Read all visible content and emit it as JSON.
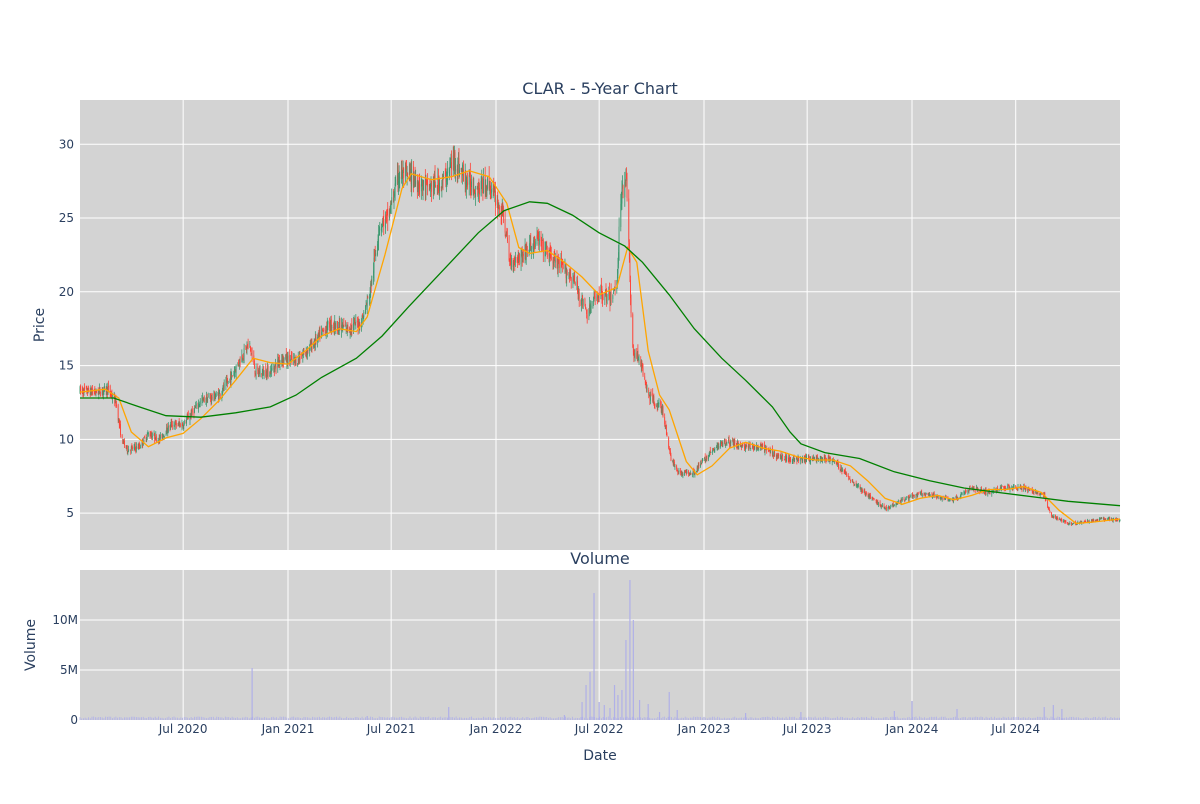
{
  "chart_data": [
    {
      "type": "candlestick",
      "title": "CLAR - 5-Year Chart",
      "ylabel": "Price",
      "ylim": [
        2.5,
        33
      ],
      "yticks": [
        5,
        10,
        15,
        20,
        25,
        30
      ],
      "x_range": [
        "2020-01-02",
        "2024-12-31"
      ],
      "grid": true,
      "colors": {
        "increasing": "#3d9970",
        "decreasing": "#ff4136",
        "ma_short": "#ffa500",
        "ma_long": "#008000",
        "plot_bg": "#d3d3d3"
      },
      "price_path": [
        [
          "2020-01-02",
          13.3
        ],
        [
          "2020-02-01",
          13.2
        ],
        [
          "2020-02-20",
          13.4
        ],
        [
          "2020-03-05",
          12.5
        ],
        [
          "2020-03-15",
          10.0
        ],
        [
          "2020-03-25",
          9.3
        ],
        [
          "2020-04-15",
          9.5
        ],
        [
          "2020-05-01",
          10.4
        ],
        [
          "2020-05-20",
          10.0
        ],
        [
          "2020-06-10",
          11.0
        ],
        [
          "2020-07-01",
          11.0
        ],
        [
          "2020-08-01",
          12.6
        ],
        [
          "2020-09-01",
          13.0
        ],
        [
          "2020-09-20",
          14.0
        ],
        [
          "2020-10-10",
          15.5
        ],
        [
          "2020-10-25",
          16.5
        ],
        [
          "2020-11-05",
          14.5
        ],
        [
          "2020-12-01",
          14.6
        ],
        [
          "2020-12-20",
          15.5
        ],
        [
          "2021-01-15",
          15.3
        ],
        [
          "2021-02-15",
          16.5
        ],
        [
          "2021-03-15",
          17.8
        ],
        [
          "2021-04-15",
          17.5
        ],
        [
          "2021-05-10",
          18.0
        ],
        [
          "2021-05-25",
          20.0
        ],
        [
          "2021-06-10",
          24.5
        ],
        [
          "2021-06-25",
          25.0
        ],
        [
          "2021-07-15",
          28.0
        ],
        [
          "2021-08-05",
          27.8
        ],
        [
          "2021-09-01",
          27.0
        ],
        [
          "2021-10-01",
          27.5
        ],
        [
          "2021-10-20",
          29.0
        ],
        [
          "2021-11-10",
          27.5
        ],
        [
          "2021-12-01",
          27.0
        ],
        [
          "2021-12-20",
          27.3
        ],
        [
          "2022-01-15",
          25.0
        ],
        [
          "2022-01-25",
          22.0
        ],
        [
          "2022-02-15",
          22.5
        ],
        [
          "2022-03-15",
          23.5
        ],
        [
          "2022-04-15",
          22.0
        ],
        [
          "2022-05-15",
          21.0
        ],
        [
          "2022-06-10",
          18.5
        ],
        [
          "2022-07-01",
          20.0
        ],
        [
          "2022-07-20",
          19.5
        ],
        [
          "2022-08-01",
          20.5
        ],
        [
          "2022-08-08",
          26.5
        ],
        [
          "2022-08-18",
          28.0
        ],
        [
          "2022-08-28",
          16.0
        ],
        [
          "2022-09-10",
          15.5
        ],
        [
          "2022-09-25",
          13.0
        ],
        [
          "2022-10-20",
          12.0
        ],
        [
          "2022-11-05",
          8.5
        ],
        [
          "2022-11-20",
          7.7
        ],
        [
          "2022-12-15",
          7.8
        ],
        [
          "2023-01-10",
          9.0
        ],
        [
          "2023-02-05",
          9.9
        ],
        [
          "2023-03-15",
          9.5
        ],
        [
          "2023-04-15",
          9.4
        ],
        [
          "2023-05-15",
          8.8
        ],
        [
          "2023-06-15",
          8.6
        ],
        [
          "2023-07-15",
          8.7
        ],
        [
          "2023-08-15",
          8.6
        ],
        [
          "2023-09-15",
          7.3
        ],
        [
          "2023-10-15",
          6.2
        ],
        [
          "2023-11-15",
          5.3
        ],
        [
          "2023-12-15",
          5.9
        ],
        [
          "2024-01-15",
          6.3
        ],
        [
          "2024-02-15",
          6.1
        ],
        [
          "2024-03-15",
          5.9
        ],
        [
          "2024-04-15",
          6.7
        ],
        [
          "2024-05-15",
          6.4
        ],
        [
          "2024-06-15",
          6.8
        ],
        [
          "2024-07-15",
          6.7
        ],
        [
          "2024-08-20",
          6.2
        ],
        [
          "2024-09-01",
          4.8
        ],
        [
          "2024-10-01",
          4.3
        ],
        [
          "2024-11-01",
          4.4
        ],
        [
          "2024-12-01",
          4.6
        ],
        [
          "2024-12-31",
          4.5
        ]
      ],
      "ma_short": [
        [
          "2020-01-02",
          13.2
        ],
        [
          "2020-02-15",
          13.4
        ],
        [
          "2020-03-10",
          12.8
        ],
        [
          "2020-04-01",
          10.5
        ],
        [
          "2020-05-01",
          9.5
        ],
        [
          "2020-06-01",
          10.1
        ],
        [
          "2020-07-01",
          10.4
        ],
        [
          "2020-08-01",
          11.4
        ],
        [
          "2020-09-01",
          12.6
        ],
        [
          "2020-10-01",
          14.0
        ],
        [
          "2020-11-01",
          15.5
        ],
        [
          "2020-12-01",
          15.2
        ],
        [
          "2021-01-01",
          15.1
        ],
        [
          "2021-02-01",
          16.0
        ],
        [
          "2021-03-01",
          17.0
        ],
        [
          "2021-04-01",
          17.5
        ],
        [
          "2021-05-01",
          17.3
        ],
        [
          "2021-05-20",
          18.3
        ],
        [
          "2021-06-20",
          22.5
        ],
        [
          "2021-07-20",
          27.0
        ],
        [
          "2021-08-05",
          28.0
        ],
        [
          "2021-09-10",
          27.6
        ],
        [
          "2021-10-15",
          27.8
        ],
        [
          "2021-11-15",
          28.2
        ],
        [
          "2021-12-20",
          27.8
        ],
        [
          "2022-01-20",
          26.0
        ],
        [
          "2022-02-10",
          23.0
        ],
        [
          "2022-03-01",
          22.6
        ],
        [
          "2022-04-01",
          22.8
        ],
        [
          "2022-05-01",
          22.0
        ],
        [
          "2022-06-01",
          21.0
        ],
        [
          "2022-07-01",
          19.8
        ],
        [
          "2022-08-01",
          20.3
        ],
        [
          "2022-08-20",
          23.0
        ],
        [
          "2022-09-05",
          22.0
        ],
        [
          "2022-09-25",
          16.0
        ],
        [
          "2022-10-15",
          13.0
        ],
        [
          "2022-11-01",
          12.0
        ],
        [
          "2022-12-01",
          8.5
        ],
        [
          "2022-12-20",
          7.6
        ],
        [
          "2023-01-15",
          8.2
        ],
        [
          "2023-02-15",
          9.4
        ],
        [
          "2023-03-15",
          9.8
        ],
        [
          "2023-04-15",
          9.4
        ],
        [
          "2023-05-15",
          9.2
        ],
        [
          "2023-06-15",
          8.8
        ],
        [
          "2023-07-15",
          8.6
        ],
        [
          "2023-08-15",
          8.6
        ],
        [
          "2023-09-15",
          8.2
        ],
        [
          "2023-10-15",
          7.2
        ],
        [
          "2023-11-15",
          6.0
        ],
        [
          "2023-12-15",
          5.6
        ],
        [
          "2024-01-15",
          6.0
        ],
        [
          "2024-02-15",
          6.2
        ],
        [
          "2024-03-15",
          5.9
        ],
        [
          "2024-04-15",
          6.2
        ],
        [
          "2024-05-15",
          6.6
        ],
        [
          "2024-06-15",
          6.6
        ],
        [
          "2024-07-15",
          6.8
        ],
        [
          "2024-08-15",
          6.4
        ],
        [
          "2024-09-15",
          5.2
        ],
        [
          "2024-10-15",
          4.3
        ],
        [
          "2024-11-15",
          4.4
        ],
        [
          "2024-12-31",
          4.6
        ]
      ],
      "ma_long": [
        [
          "2020-01-02",
          12.8
        ],
        [
          "2020-03-01",
          12.8
        ],
        [
          "2020-04-15",
          12.2
        ],
        [
          "2020-06-01",
          11.6
        ],
        [
          "2020-08-01",
          11.5
        ],
        [
          "2020-10-01",
          11.8
        ],
        [
          "2020-12-01",
          12.2
        ],
        [
          "2021-01-15",
          13.0
        ],
        [
          "2021-03-01",
          14.2
        ],
        [
          "2021-05-01",
          15.5
        ],
        [
          "2021-06-15",
          17.0
        ],
        [
          "2021-08-01",
          19.0
        ],
        [
          "2021-10-01",
          21.5
        ],
        [
          "2021-12-01",
          24.0
        ],
        [
          "2022-01-15",
          25.5
        ],
        [
          "2022-03-01",
          26.1
        ],
        [
          "2022-04-01",
          26.0
        ],
        [
          "2022-05-15",
          25.2
        ],
        [
          "2022-07-01",
          24.0
        ],
        [
          "2022-08-15",
          23.1
        ],
        [
          "2022-09-15",
          22.0
        ],
        [
          "2022-11-01",
          19.8
        ],
        [
          "2022-12-15",
          17.5
        ],
        [
          "2023-02-01",
          15.5
        ],
        [
          "2023-03-15",
          14.0
        ],
        [
          "2023-05-01",
          12.2
        ],
        [
          "2023-06-01",
          10.5
        ],
        [
          "2023-06-20",
          9.7
        ],
        [
          "2023-08-01",
          9.1
        ],
        [
          "2023-10-01",
          8.7
        ],
        [
          "2023-12-01",
          7.8
        ],
        [
          "2024-02-01",
          7.2
        ],
        [
          "2024-04-01",
          6.7
        ],
        [
          "2024-06-01",
          6.4
        ],
        [
          "2024-08-01",
          6.1
        ],
        [
          "2024-10-01",
          5.8
        ],
        [
          "2024-12-31",
          5.5
        ]
      ]
    },
    {
      "type": "bar",
      "title": "Volume",
      "xlabel": "Date",
      "ylabel": "Volume",
      "ylim": [
        0,
        15000000
      ],
      "yticks": [
        0,
        5000000,
        10000000
      ],
      "ytick_labels": [
        "0",
        "5M",
        "10M"
      ],
      "xticks": [
        "2020-07-01",
        "2021-01-01",
        "2021-07-01",
        "2022-01-01",
        "2022-07-01",
        "2023-01-01",
        "2023-07-01",
        "2024-01-01",
        "2024-07-01"
      ],
      "xtick_labels": [
        "Jul 2020",
        "Jan 2021",
        "Jul 2021",
        "Jan 2022",
        "Jul 2022",
        "Jan 2023",
        "Jul 2023",
        "Jan 2024",
        "Jul 2024"
      ],
      "bar_color": "#b0b0e8",
      "baseline": 250000,
      "spikes": [
        [
          "2020-10-30",
          5200000
        ],
        [
          "2021-05-20",
          400000
        ],
        [
          "2021-10-10",
          1300000
        ],
        [
          "2022-05-01",
          500000
        ],
        [
          "2022-06-01",
          1800000
        ],
        [
          "2022-06-08",
          3500000
        ],
        [
          "2022-06-15",
          4800000
        ],
        [
          "2022-06-22",
          12700000
        ],
        [
          "2022-07-01",
          1800000
        ],
        [
          "2022-07-10",
          1500000
        ],
        [
          "2022-07-20",
          1200000
        ],
        [
          "2022-07-28",
          3500000
        ],
        [
          "2022-08-03",
          2500000
        ],
        [
          "2022-08-10",
          3000000
        ],
        [
          "2022-08-17",
          8000000
        ],
        [
          "2022-08-24",
          14000000
        ],
        [
          "2022-08-30",
          10000000
        ],
        [
          "2022-09-10",
          2000000
        ],
        [
          "2022-09-25",
          1600000
        ],
        [
          "2022-10-15",
          800000
        ],
        [
          "2022-11-01",
          2800000
        ],
        [
          "2022-11-15",
          1000000
        ],
        [
          "2023-03-15",
          700000
        ],
        [
          "2023-06-20",
          800000
        ],
        [
          "2023-12-01",
          900000
        ],
        [
          "2024-01-01",
          1900000
        ],
        [
          "2024-03-20",
          1100000
        ],
        [
          "2024-08-20",
          1300000
        ],
        [
          "2024-09-05",
          1500000
        ],
        [
          "2024-09-20",
          1100000
        ]
      ]
    }
  ]
}
